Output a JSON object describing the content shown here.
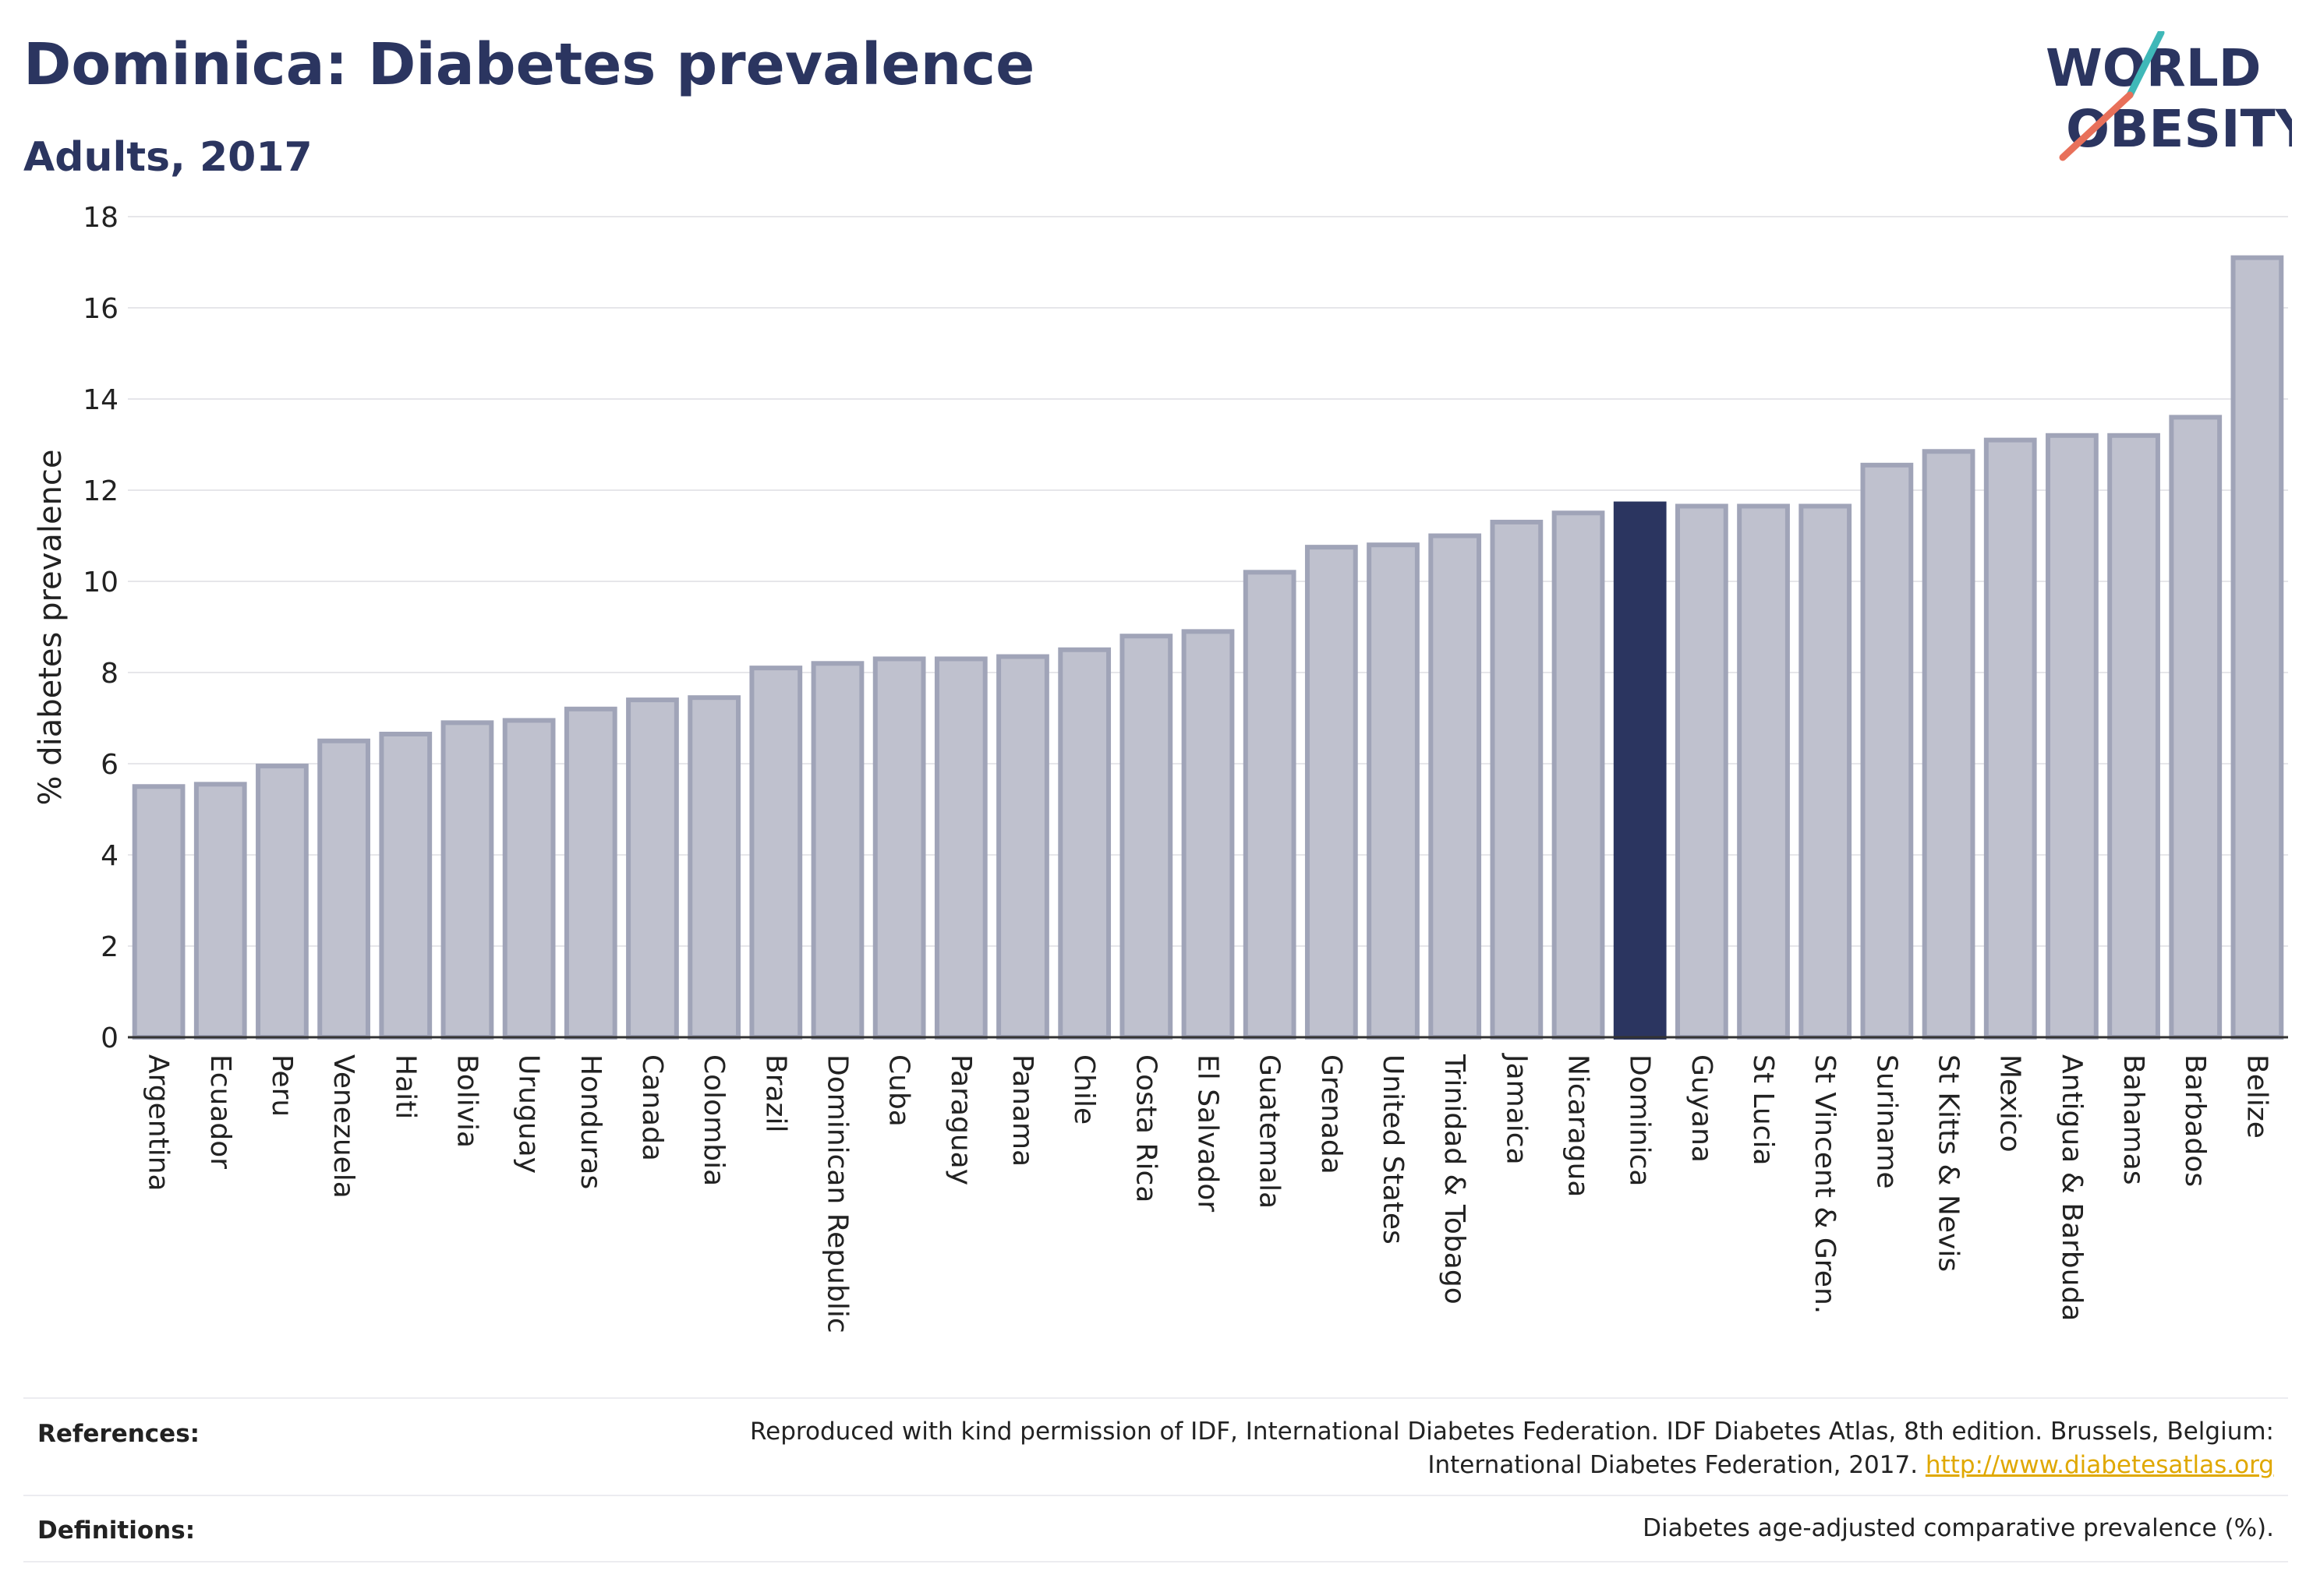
{
  "header": {
    "title": "Dominica: Diabetes prevalence",
    "subtitle": "Adults, 2017"
  },
  "logo": {
    "line1": "WORLD",
    "line2": "OBESITY",
    "accent_colors": [
      "#3fb8b8",
      "#e8705a"
    ]
  },
  "chart_data": {
    "type": "bar",
    "title": "Dominica: Diabetes prevalence",
    "subtitle": "Adults, 2017",
    "ylabel": "% diabetes prevalence",
    "xlabel": "",
    "ylim": [
      0,
      18
    ],
    "yticks": [
      0,
      2,
      4,
      6,
      8,
      10,
      12,
      14,
      16,
      18
    ],
    "grid": true,
    "highlight": "Dominica",
    "colors": {
      "bar": "#bfc1ce",
      "bar_edge": "#a0a4b8",
      "highlight": "#2b3560"
    },
    "categories": [
      "Argentina",
      "Ecuador",
      "Peru",
      "Venezuela",
      "Haiti",
      "Bolivia",
      "Uruguay",
      "Honduras",
      "Canada",
      "Colombia",
      "Brazil",
      "Dominican Republic",
      "Cuba",
      "Paraguay",
      "Panama",
      "Chile",
      "Costa Rica",
      "El Salvador",
      "Guatemala",
      "Grenada",
      "United States",
      "Trinidad & Tobago",
      "Jamaica",
      "Nicaragua",
      "Dominica",
      "Guyana",
      "St Lucia",
      "St Vincent & Gren.",
      "Suriname",
      "St Kitts & Nevis",
      "Mexico",
      "Antigua & Barbuda",
      "Bahamas",
      "Barbados",
      "Belize"
    ],
    "values": [
      5.5,
      5.55,
      5.95,
      6.5,
      6.65,
      6.9,
      6.95,
      7.2,
      7.4,
      7.45,
      8.1,
      8.2,
      8.3,
      8.3,
      8.35,
      8.5,
      8.8,
      8.9,
      10.2,
      10.75,
      10.8,
      11.0,
      11.3,
      11.5,
      11.7,
      11.65,
      11.65,
      11.65,
      12.55,
      12.85,
      13.1,
      13.2,
      13.2,
      13.6,
      17.1
    ]
  },
  "footer": {
    "references_label": "References:",
    "references_text_line1": "Reproduced with kind permission of IDF, International Diabetes Federation. IDF Diabetes Atlas, 8th edition. Brussels, Belgium:",
    "references_text_line2": "International Diabetes Federation, 2017. ",
    "references_link": "http://www.diabetesatlas.org",
    "definitions_label": "Definitions:",
    "definitions_text": "Diabetes age-adjusted comparative prevalence (%)."
  }
}
